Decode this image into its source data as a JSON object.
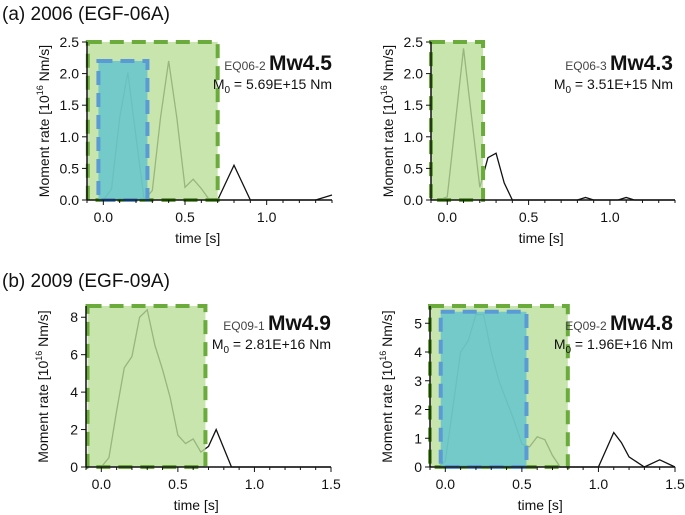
{
  "panel_titles": [
    "(a) 2006 (EGF-06A)",
    "(b) 2009 (EGF-09A)"
  ],
  "colors": {
    "green_fill": "#b9df98",
    "green_edge": "#6aab3c",
    "blue_fill": "#5fc3cf",
    "blue_edge": "#5b9bd5",
    "line": "#111111"
  },
  "chart_data": [
    {
      "type": "line",
      "event": "EQ06-2",
      "mw": "Mw4.5",
      "m0_label": "M",
      "m0_sub": "0",
      "m0_value": " = 5.69E+15 Nm",
      "xlabel": "time [s]",
      "ylabel": "Moment rate [10^16 Nm/s]",
      "xlim": [
        -0.1,
        1.4
      ],
      "ylim": [
        0,
        2.5
      ],
      "xticks": [
        "0.0",
        "0.5",
        "1.0"
      ],
      "yticks": [
        "0.0",
        "0.5",
        "1.0",
        "1.5",
        "2.0",
        "2.5"
      ],
      "x": [
        0,
        0.05,
        0.1,
        0.15,
        0.2,
        0.25,
        0.3,
        0.35,
        0.4,
        0.45,
        0.5,
        0.55,
        0.6,
        0.65,
        0.7,
        0.8,
        0.9,
        1.3,
        1.4
      ],
      "y": [
        0,
        0.17,
        1.3,
        2.02,
        1.0,
        0,
        0.15,
        1.3,
        2.2,
        1.3,
        0.2,
        0.33,
        0.18,
        0,
        0,
        0.55,
        0,
        0,
        0.08
      ],
      "green_window": [
        -0.095,
        0.7,
        2.5
      ],
      "blue_window": [
        -0.03,
        0.27,
        2.2
      ]
    },
    {
      "type": "line",
      "event": "EQ06-3",
      "mw": "Mw4.3",
      "m0_label": "M",
      "m0_sub": "0",
      "m0_value": " = 3.51E+15 Nm",
      "xlabel": "time [s]",
      "ylabel": "Moment rate [10^16 Nm/s]",
      "xlim": [
        -0.1,
        1.4
      ],
      "ylim": [
        0,
        2.5
      ],
      "xticks": [
        "0.0",
        "0.5",
        "1.0"
      ],
      "yticks": [
        "0.0",
        "0.5",
        "1.0",
        "1.5",
        "2.0",
        "2.5"
      ],
      "x": [
        -0.05,
        0,
        0.1,
        0.2,
        0.25,
        0.3,
        0.35,
        0.4,
        0.8,
        0.85,
        0.9,
        1.05,
        1.1,
        1.15,
        1.4
      ],
      "y": [
        0,
        0.05,
        2.4,
        0.2,
        0.67,
        0.74,
        0.27,
        0,
        0,
        0.04,
        0,
        0,
        0.04,
        0,
        0
      ],
      "green_window": [
        -0.1,
        0.22,
        2.5
      ]
    },
    {
      "type": "line",
      "event": "EQ09-1",
      "mw": "Mw4.9",
      "m0_label": "M",
      "m0_sub": "0",
      "m0_value": " = 2.81E+16 Nm",
      "xlabel": "time [s]",
      "ylabel": "Moment rate [10^16 Nm/s]",
      "xlim": [
        -0.1,
        1.5
      ],
      "ylim": [
        0,
        8.6
      ],
      "xticks": [
        "0.0",
        "0.5",
        "1.0",
        "1.5"
      ],
      "yticks": [
        "0",
        "2",
        "4",
        "6",
        "8"
      ],
      "x": [
        0,
        0.05,
        0.1,
        0.15,
        0.2,
        0.25,
        0.3,
        0.35,
        0.4,
        0.45,
        0.5,
        0.55,
        0.6,
        0.65,
        0.7,
        0.75,
        0.8,
        0.85,
        1.5
      ],
      "y": [
        0,
        0.5,
        3.0,
        5.3,
        5.9,
        8.0,
        8.4,
        6.5,
        5.2,
        3.7,
        1.7,
        1.25,
        1.5,
        0.8,
        1.1,
        2.0,
        1.0,
        0,
        0
      ],
      "green_window": [
        -0.09,
        0.68,
        8.6
      ]
    },
    {
      "type": "line",
      "event": "EQ09-2",
      "mw": "Mw4.8",
      "m0_label": "M",
      "m0_sub": "0",
      "m0_value": " = 1.96E+16 Nm",
      "xlabel": "time [s]",
      "ylabel": "Moment rate [10^16 Nm/s]",
      "xlim": [
        -0.1,
        1.5
      ],
      "ylim": [
        0,
        5.6
      ],
      "xticks": [
        "0.0",
        "0.5",
        "1.0",
        "1.5"
      ],
      "yticks": [
        "0",
        "1",
        "2",
        "3",
        "4",
        "5"
      ],
      "x": [
        -0.05,
        0,
        0.1,
        0.15,
        0.2,
        0.25,
        0.3,
        0.35,
        0.4,
        0.45,
        0.5,
        0.55,
        0.6,
        0.65,
        0.7,
        0.75,
        1.0,
        1.1,
        1.15,
        1.2,
        1.3,
        1.4,
        1.5
      ],
      "y": [
        0,
        0.2,
        4.0,
        4.4,
        5.3,
        5.3,
        4.0,
        3.0,
        2.3,
        1.6,
        0.8,
        0.7,
        1.05,
        0.95,
        0.4,
        0,
        0,
        1.2,
        0.85,
        0.35,
        0,
        0.25,
        0
      ],
      "green_window": [
        -0.1,
        0.8,
        5.6
      ],
      "blue_window": [
        -0.03,
        0.53,
        5.4
      ]
    }
  ]
}
